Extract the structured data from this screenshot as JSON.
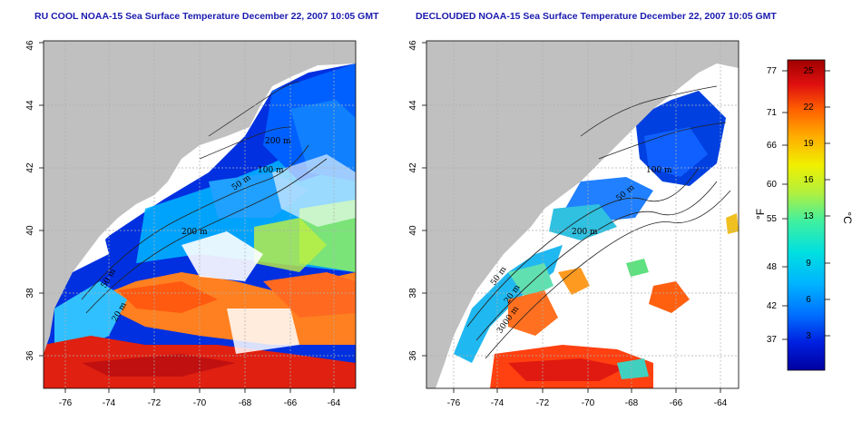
{
  "panels": [
    {
      "id": "left",
      "title": "RU COOL NOAA-15 Sea Surface Temperature December 22, 2007 10:05 GMT",
      "contour_labels": [
        "200 m",
        "100 m",
        "50 m",
        "200 m",
        "50 m",
        "20 m"
      ]
    },
    {
      "id": "right",
      "title": "DECLOUDED NOAA-15 Sea Surface Temperature December 22, 2007 10:05 GMT",
      "contour_labels": [
        "100 m",
        "50 m",
        "200 m",
        "50 m",
        "20 m",
        "3000 m"
      ]
    }
  ],
  "axes": {
    "x_ticks": [
      "-76",
      "-74",
      "-72",
      "-70",
      "-68",
      "-66",
      "-64"
    ],
    "y_ticks": [
      "36",
      "38",
      "40",
      "42",
      "44",
      "46"
    ],
    "x_range": [
      -77.3,
      -62.9
    ],
    "y_range": [
      35,
      46
    ]
  },
  "colorbar": {
    "fahrenheit_ticks": [
      "77",
      "71",
      "66",
      "60",
      "55",
      "48",
      "42",
      "37"
    ],
    "celsius_ticks": [
      "25",
      "22",
      "19",
      "16",
      "13",
      "9",
      "6",
      "3"
    ],
    "unit_f": "°F",
    "unit_c": "°C",
    "colors": [
      "#0000a0",
      "#0020e0",
      "#0070ff",
      "#00b4ff",
      "#00e0e0",
      "#40f0a0",
      "#b0f040",
      "#f0f000",
      "#ffb000",
      "#ff6000",
      "#e01010",
      "#a00000"
    ]
  },
  "colors": {
    "land": "#c0c0c0",
    "no_data": "#ffffff",
    "title": "#1a1ab0",
    "grid": "#b0b0b0"
  }
}
